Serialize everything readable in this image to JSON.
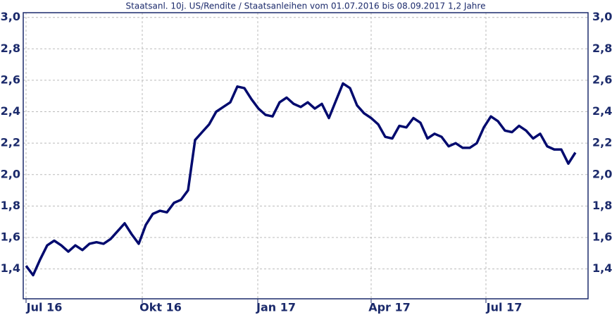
{
  "chart_data": {
    "type": "line",
    "title": "Staatsanl. 10j. US/Rendite / Staatsanleihen vom 01.07.2016 bis 08.09.2017 1,2 Jahre",
    "series": [
      {
        "color": "#000a6e",
        "values": [
          1.42,
          1.36,
          1.46,
          1.55,
          1.58,
          1.55,
          1.51,
          1.55,
          1.52,
          1.56,
          1.57,
          1.56,
          1.59,
          1.64,
          1.69,
          1.62,
          1.56,
          1.68,
          1.75,
          1.77,
          1.76,
          1.82,
          1.84,
          1.9,
          2.22,
          2.27,
          2.32,
          2.4,
          2.43,
          2.46,
          2.56,
          2.55,
          2.48,
          2.42,
          2.38,
          2.37,
          2.46,
          2.49,
          2.45,
          2.43,
          2.46,
          2.42,
          2.45,
          2.36,
          2.47,
          2.58,
          2.55,
          2.44,
          2.39,
          2.36,
          2.32,
          2.24,
          2.23,
          2.31,
          2.3,
          2.36,
          2.33,
          2.23,
          2.26,
          2.24,
          2.18,
          2.2,
          2.17,
          2.17,
          2.2,
          2.3,
          2.37,
          2.34,
          2.28,
          2.27,
          2.31,
          2.28,
          2.23,
          2.26,
          2.18,
          2.16,
          2.16,
          2.07,
          2.14
        ]
      }
    ],
    "xlim": [
      -0.4,
      79.8
    ],
    "xticks": [
      {
        "value": 0,
        "label": "Jul 16"
      },
      {
        "value": 16.5,
        "label": "Okt 16"
      },
      {
        "value": 32.9,
        "label": "Jan 17"
      },
      {
        "value": 49,
        "label": "Apr 17"
      },
      {
        "value": 65.3,
        "label": "Jul 17"
      }
    ],
    "ylim": [
      1.21,
      3.03
    ],
    "yticks": [
      {
        "value": 1.4,
        "label": "1,4"
      },
      {
        "value": 1.6,
        "label": "1,6"
      },
      {
        "value": 1.8,
        "label": "1,8"
      },
      {
        "value": 2.0,
        "label": "2,0"
      },
      {
        "value": 2.2,
        "label": "2,2"
      },
      {
        "value": 2.4,
        "label": "2,4"
      },
      {
        "value": 2.6,
        "label": "2,6"
      },
      {
        "value": 2.8,
        "label": "2,8"
      },
      {
        "value": 3.0,
        "label": "3,0"
      }
    ],
    "grid": true
  }
}
